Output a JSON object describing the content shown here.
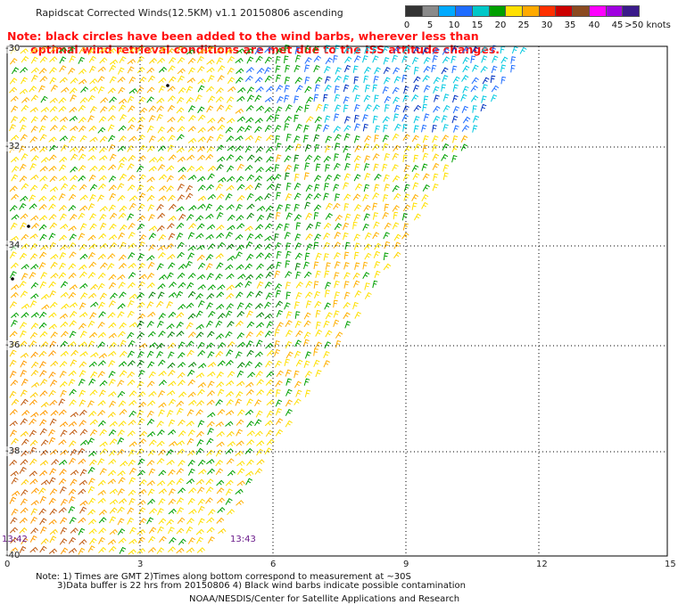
{
  "title": "Rapidscat Corrected Winds(12.5KM) v1.1 20150806 ascending",
  "note_line1": "Note: black circles have been added to the wind barbs, wherever less than",
  "note_line2": "      optimal wind retrieval conditions are met due to the ISS attitude changes.",
  "legend": {
    "colors": [
      "#333333",
      "#8a8a8a",
      "#00aaff",
      "#1e6cff",
      "#00c8c8",
      "#00a000",
      "#ffe000",
      "#ffaa00",
      "#ff3000",
      "#cc0000",
      "#8b4a20",
      "#ff00ff",
      "#a000e0",
      "#3a1a8a"
    ],
    "labels": [
      "0",
      "5",
      "10",
      "15",
      "20",
      "25",
      "30",
      "35",
      "40",
      "45",
      ">50 knots"
    ]
  },
  "x_axis": {
    "ticks": [
      "0",
      "3",
      "6",
      "9",
      "12",
      "15"
    ]
  },
  "y_axis": {
    "ticks": [
      "-30",
      "-32",
      "-34",
      "-36",
      "-38",
      "-40"
    ]
  },
  "times": {
    "left": "13:42",
    "mid": "13:43"
  },
  "footnote_line1": "Note: 1) Times are GMT 2)Times along bottom correspond to measurement at ~30S",
  "footnote_line2": "3)Data buffer is 22 hrs from 20150806 4) Black wind barbs indicate possible contamination",
  "credit": "NOAA/NESDIS/Center for Satellite Applications and Research"
}
